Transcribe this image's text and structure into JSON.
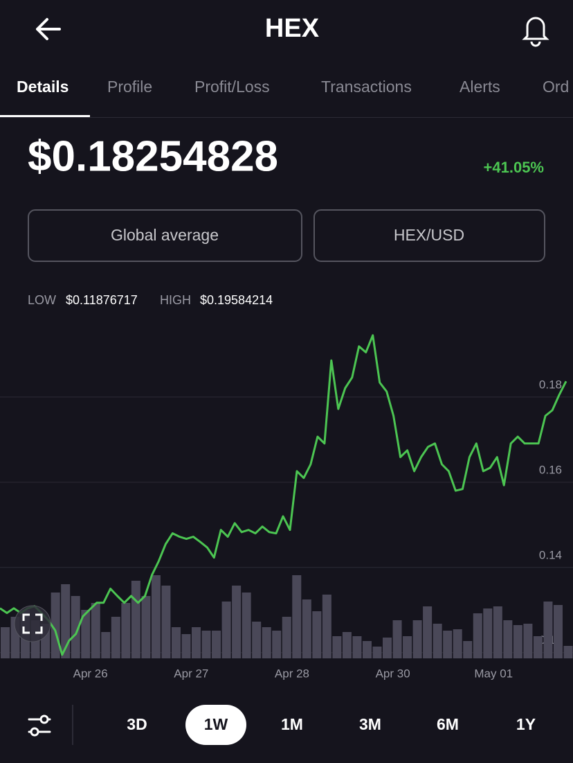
{
  "header": {
    "title": "HEX"
  },
  "tabs": [
    "Details",
    "Profile",
    "Profit/Loss",
    "Transactions",
    "Alerts",
    "Ord"
  ],
  "price": "$0.18254828",
  "change": "+41.05%",
  "buttons": [
    "Global average",
    "HEX/USD"
  ],
  "stats": [
    {
      "label": "LOW",
      "value": "$0.11876717"
    },
    {
      "label": "HIGH",
      "value": "$0.19584214"
    }
  ],
  "chart_data": {
    "type": "line",
    "color": "#4cc552",
    "values": [
      0.1304,
      0.1293,
      0.1304,
      0.1293,
      0.1304,
      0.1309,
      0.1293,
      0.1276,
      0.1252,
      0.1195,
      0.1228,
      0.1244,
      0.1285,
      0.1301,
      0.1317,
      0.1317,
      0.135,
      0.1333,
      0.1317,
      0.1333,
      0.1317,
      0.1333,
      0.1382,
      0.1415,
      0.1455,
      0.148,
      0.1472,
      0.1467,
      0.1472,
      0.146,
      0.1447,
      0.1423,
      0.1488,
      0.1472,
      0.1504,
      0.1483,
      0.1488,
      0.148,
      0.1496,
      0.1483,
      0.148,
      0.152,
      0.1488,
      0.1626,
      0.161,
      0.1642,
      0.1707,
      0.1691,
      0.1886,
      0.1772,
      0.1821,
      0.1846,
      0.1919,
      0.1905,
      0.1945,
      0.1834,
      0.1813,
      0.1756,
      0.1659,
      0.1675,
      0.1626,
      0.1659,
      0.1683,
      0.1691,
      0.1642,
      0.1626,
      0.158,
      0.1584,
      0.1659,
      0.1691,
      0.1626,
      0.1634,
      0.1659,
      0.1593,
      0.1691,
      0.1707,
      0.1691,
      0.1691,
      0.1691,
      0.1756,
      0.1769,
      0.1805,
      0.1837
    ],
    "volume": {
      "color": "#4a4858",
      "values": [
        45,
        60,
        70,
        55,
        50,
        95,
        107,
        90,
        70,
        80,
        38,
        60,
        80,
        112,
        90,
        120,
        105,
        45,
        35,
        45,
        40,
        40,
        82,
        105,
        95,
        53,
        45,
        40,
        60,
        120,
        85,
        68,
        92,
        32,
        38,
        32,
        25,
        17,
        30,
        55,
        32,
        55,
        75,
        50,
        40,
        42,
        25,
        65,
        72,
        75,
        55,
        48,
        50,
        32,
        82,
        77,
        18
      ]
    },
    "xlim": [
      0,
      83
    ],
    "xticks": [
      {
        "value": 13.1,
        "label": "Apr 26"
      },
      {
        "value": 27.7,
        "label": "Apr 27"
      },
      {
        "value": 42.3,
        "label": "Apr 28"
      },
      {
        "value": 56.9,
        "label": "Apr 30"
      },
      {
        "value": 71.5,
        "label": "May 01"
      }
    ],
    "ylim": [
      0.118,
      0.2
    ],
    "yticks": [
      0.12,
      0.14,
      0.16,
      0.18
    ],
    "grid": true
  },
  "ranges": [
    "3D",
    "1W",
    "1M",
    "3M",
    "6M",
    "1Y"
  ]
}
